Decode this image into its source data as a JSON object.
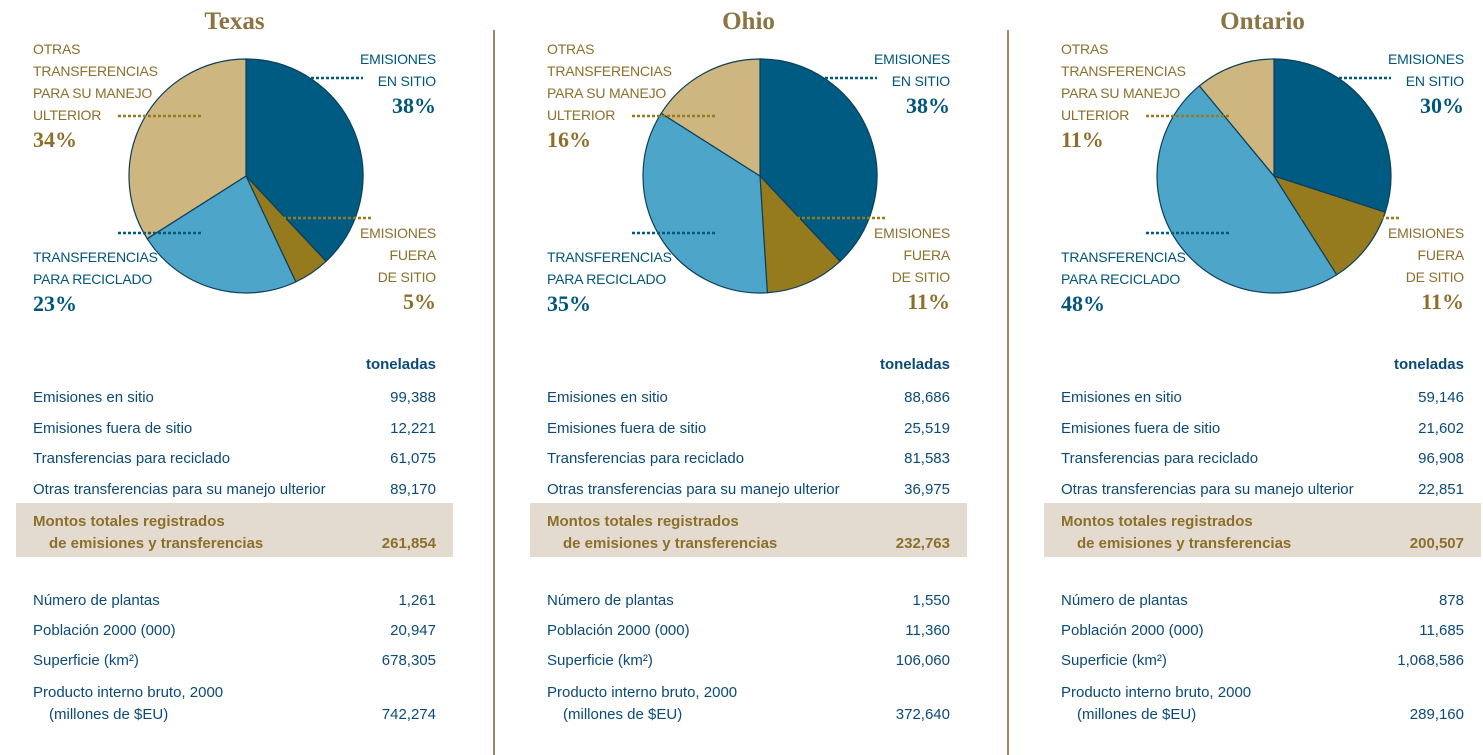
{
  "chart_data": [
    {
      "type": "pie",
      "title": "Texas",
      "categories": [
        "EMISIONES\nEN SITIO",
        "EMISIONES\nFUERA\nDE SITIO",
        "TRANSFERENCIAS\nPARA RECICLADO",
        "OTRAS\nTRANSFERENCIAS\nPARA SU MANEJO\nULTERIOR"
      ],
      "values": [
        38,
        5,
        23,
        34
      ],
      "value_labels": [
        "38%",
        "5%",
        "23%",
        "34%"
      ],
      "colors": [
        "#005b82",
        "#957a1e",
        "#4da5c9",
        "#cdb67f"
      ]
    },
    {
      "type": "pie",
      "title": "Ohio",
      "categories": [
        "EMISIONES\nEN SITIO",
        "EMISIONES\nFUERA\nDE SITIO",
        "TRANSFERENCIAS\nPARA RECICLADO",
        "OTRAS\nTRANSFERENCIAS\nPARA SU MANEJO\nULTERIOR"
      ],
      "values": [
        38,
        11,
        35,
        16
      ],
      "value_labels": [
        "38%",
        "11%",
        "35%",
        "16%"
      ],
      "colors": [
        "#005b82",
        "#957a1e",
        "#4da5c9",
        "#cdb67f"
      ]
    },
    {
      "type": "pie",
      "title": "Ontario",
      "categories": [
        "EMISIONES\nEN SITIO",
        "EMISIONES\nFUERA\nDE SITIO",
        "TRANSFERENCIAS\nPARA RECICLADO",
        "OTRAS\nTRANSFERENCIAS\nPARA SU MANEJO\nULTERIOR"
      ],
      "values": [
        30,
        11,
        48,
        11
      ],
      "value_labels": [
        "30%",
        "11%",
        "48%",
        "11%"
      ],
      "colors": [
        "#005b82",
        "#957a1e",
        "#4da5c9",
        "#cdb67f"
      ]
    }
  ],
  "panels": [
    {
      "unit_header": "toneladas",
      "rows": [
        [
          "Emisiones en sitio",
          "99,388"
        ],
        [
          "Emisiones fuera de sitio",
          "12,221"
        ],
        [
          "Transferencias para reciclado",
          "61,075"
        ],
        [
          "Otras transferencias para su manejo ulterior",
          "89,170"
        ]
      ],
      "total": [
        "Montos totales registrados\nde emisiones y transferencias",
        "261,854"
      ],
      "facts": [
        [
          "Número de plantas",
          "1,261"
        ],
        [
          "Población 2000 (000)",
          "20,947"
        ],
        [
          "Superficie (km²)",
          "678,305"
        ],
        [
          "Producto interno bruto, 2000\n(millones de $EU)",
          "742,274"
        ]
      ]
    },
    {
      "unit_header": "toneladas",
      "rows": [
        [
          "Emisiones en sitio",
          "88,686"
        ],
        [
          "Emisiones fuera de sitio",
          "25,519"
        ],
        [
          "Transferencias para reciclado",
          "81,583"
        ],
        [
          "Otras transferencias para su manejo ulterior",
          "36,975"
        ]
      ],
      "total": [
        "Montos totales registrados\nde emisiones y transferencias",
        "232,763"
      ],
      "facts": [
        [
          "Número de plantas",
          "1,550"
        ],
        [
          "Población 2000 (000)",
          "11,360"
        ],
        [
          "Superficie (km²)",
          "106,060"
        ],
        [
          "Producto interno bruto, 2000\n(millones de $EU)",
          "372,640"
        ]
      ]
    },
    {
      "unit_header": "toneladas",
      "rows": [
        [
          "Emisiones en sitio",
          "59,146"
        ],
        [
          "Emisiones fuera de sitio",
          "21,602"
        ],
        [
          "Transferencias para reciclado",
          "96,908"
        ],
        [
          "Otras transferencias para su manejo ulterior",
          "22,851"
        ]
      ],
      "total": [
        "Montos totales registrados\nde emisiones y transferencias",
        "200,507"
      ],
      "facts": [
        [
          "Número de plantas",
          "878"
        ],
        [
          "Población 2000 (000)",
          "11,685"
        ],
        [
          "Superficie (km²)",
          "1,068,586"
        ],
        [
          "Producto interno bruto, 2000\n(millones de $EU)",
          "289,160"
        ]
      ]
    }
  ]
}
